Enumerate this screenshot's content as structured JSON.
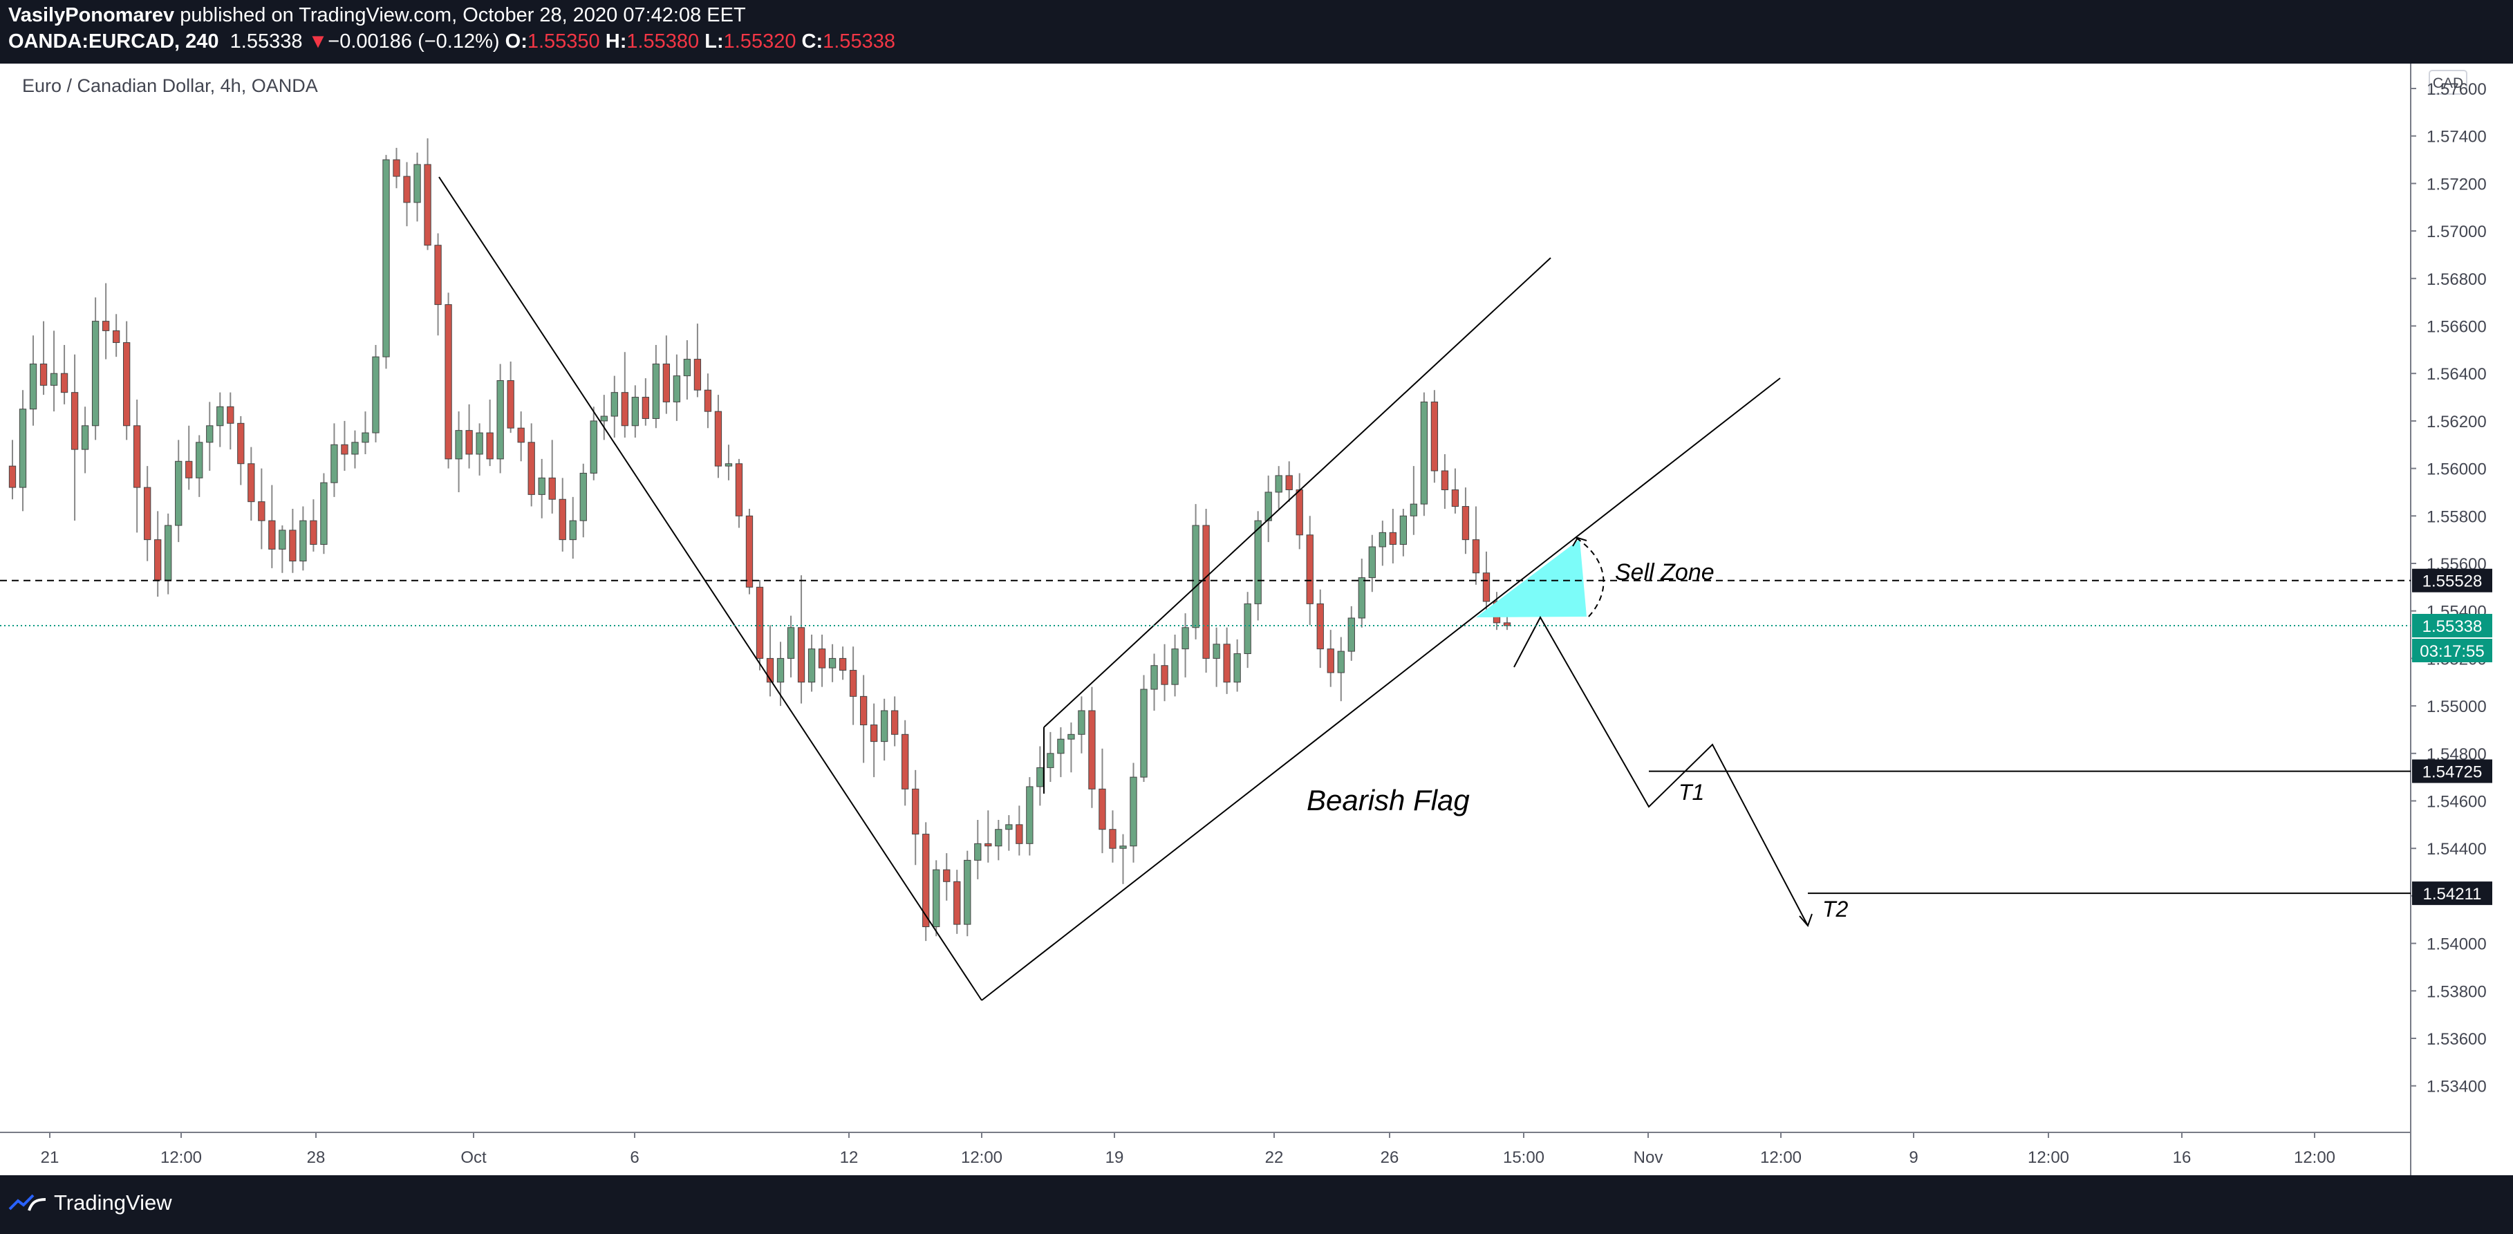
{
  "header": {
    "author": "VasilyPonomarev",
    "published_text": "published on TradingView.com, October 28, 2020 07:42:08 EET",
    "symbol": "OANDA:EURCAD, 240",
    "last": "1.55338",
    "change_arrow": "▼",
    "change": "−0.00186 (−0.12%)",
    "o_label": "O:",
    "o_value": "1.55350",
    "h_label": "H:",
    "h_value": "1.55380",
    "l_label": "L:",
    "l_value": "1.55320",
    "c_label": "C:",
    "c_value": "1.55338"
  },
  "chart": {
    "title": "Euro / Canadian Dollar, 4h, OANDA",
    "currency": "CAD",
    "annotations": {
      "sell_zone": "Sell Zone",
      "bearish_flag": "Bearish Flag",
      "t1": "T1",
      "t2": "T2"
    },
    "price_labels": {
      "dashed_level": "1.55528",
      "current": "1.55338",
      "countdown": "03:17:55",
      "t1_level": "1.54725",
      "t2_level": "1.54211"
    },
    "colors": {
      "up": "#6ba583",
      "down": "#d0544a",
      "current_price": "#089981",
      "sell_zone": "#7cfcf9"
    }
  },
  "chart_data": {
    "type": "candlestick",
    "symbol": "EURCAD",
    "timeframe": "4h",
    "ylim": [
      1.532,
      1.576
    ],
    "y_ticks": [
      "1.57600",
      "1.57400",
      "1.57200",
      "1.57000",
      "1.56800",
      "1.56600",
      "1.56400",
      "1.56200",
      "1.56000",
      "1.55800",
      "1.55600",
      "1.55400",
      "1.55200",
      "1.55000",
      "1.54800",
      "1.54600",
      "1.54400",
      "1.54200",
      "1.54000",
      "1.53800",
      "1.53600",
      "1.53400"
    ],
    "x_ticks": [
      "21",
      "12:00",
      "28",
      "Oct",
      "6",
      "12",
      "12:00",
      "19",
      "22",
      "26",
      "15:00",
      "Nov",
      "12:00",
      "9",
      "12:00",
      "16",
      "12:00"
    ],
    "ohlc": [
      [
        1.5601,
        1.5612,
        1.5587,
        1.5592
      ],
      [
        1.5592,
        1.5633,
        1.5582,
        1.5625
      ],
      [
        1.5625,
        1.5656,
        1.5618,
        1.5644
      ],
      [
        1.5644,
        1.5662,
        1.5631,
        1.5635
      ],
      [
        1.5635,
        1.5658,
        1.5624,
        1.564
      ],
      [
        1.564,
        1.5652,
        1.5627,
        1.5632
      ],
      [
        1.5632,
        1.5648,
        1.5578,
        1.5608
      ],
      [
        1.5608,
        1.5626,
        1.5598,
        1.5618
      ],
      [
        1.5618,
        1.5672,
        1.5612,
        1.5662
      ],
      [
        1.5662,
        1.5678,
        1.5646,
        1.5658
      ],
      [
        1.5658,
        1.5665,
        1.5647,
        1.5653
      ],
      [
        1.5653,
        1.5662,
        1.5612,
        1.5618
      ],
      [
        1.5618,
        1.5629,
        1.5573,
        1.5592
      ],
      [
        1.5592,
        1.5601,
        1.5561,
        1.557
      ],
      [
        1.557,
        1.5582,
        1.5546,
        1.5553
      ],
      [
        1.5553,
        1.5581,
        1.5547,
        1.5576
      ],
      [
        1.5576,
        1.5612,
        1.5569,
        1.5603
      ],
      [
        1.5603,
        1.5618,
        1.5591,
        1.5596
      ],
      [
        1.5596,
        1.5614,
        1.5588,
        1.5611
      ],
      [
        1.5611,
        1.5628,
        1.5599,
        1.5618
      ],
      [
        1.5618,
        1.5632,
        1.5609,
        1.5626
      ],
      [
        1.5626,
        1.5632,
        1.5608,
        1.5619
      ],
      [
        1.5619,
        1.5622,
        1.5593,
        1.5602
      ],
      [
        1.5602,
        1.5609,
        1.5578,
        1.5586
      ],
      [
        1.5586,
        1.56,
        1.5566,
        1.5578
      ],
      [
        1.5578,
        1.5593,
        1.5558,
        1.5566
      ],
      [
        1.5566,
        1.5576,
        1.5556,
        1.5574
      ],
      [
        1.5574,
        1.5583,
        1.5556,
        1.5561
      ],
      [
        1.5561,
        1.5584,
        1.5557,
        1.5578
      ],
      [
        1.5578,
        1.5587,
        1.5565,
        1.5568
      ],
      [
        1.5568,
        1.5598,
        1.5564,
        1.5594
      ],
      [
        1.5594,
        1.5619,
        1.5588,
        1.561
      ],
      [
        1.561,
        1.562,
        1.5599,
        1.5606
      ],
      [
        1.5606,
        1.5616,
        1.56,
        1.5611
      ],
      [
        1.5611,
        1.5624,
        1.5606,
        1.5615
      ],
      [
        1.5615,
        1.5652,
        1.5611,
        1.5647
      ],
      [
        1.5647,
        1.5732,
        1.5642,
        1.573
      ],
      [
        1.573,
        1.5735,
        1.5718,
        1.5723
      ],
      [
        1.5723,
        1.5729,
        1.5702,
        1.5712
      ],
      [
        1.5712,
        1.5733,
        1.5704,
        1.5728
      ],
      [
        1.5728,
        1.5739,
        1.5692,
        1.5694
      ],
      [
        1.5694,
        1.5699,
        1.5656,
        1.5669
      ],
      [
        1.5669,
        1.5674,
        1.56,
        1.5604
      ],
      [
        1.5604,
        1.5624,
        1.559,
        1.5616
      ],
      [
        1.5616,
        1.5627,
        1.56,
        1.5606
      ],
      [
        1.5606,
        1.5619,
        1.5597,
        1.5615
      ],
      [
        1.5615,
        1.5629,
        1.5601,
        1.5604
      ],
      [
        1.5604,
        1.5644,
        1.5598,
        1.5637
      ],
      [
        1.5637,
        1.5645,
        1.5615,
        1.5617
      ],
      [
        1.5617,
        1.5624,
        1.5603,
        1.5611
      ],
      [
        1.5611,
        1.5619,
        1.5584,
        1.5589
      ],
      [
        1.5589,
        1.5604,
        1.5579,
        1.5596
      ],
      [
        1.5596,
        1.5612,
        1.5581,
        1.5587
      ],
      [
        1.5587,
        1.5596,
        1.5565,
        1.557
      ],
      [
        1.557,
        1.5588,
        1.5562,
        1.5578
      ],
      [
        1.5578,
        1.5602,
        1.5571,
        1.5598
      ],
      [
        1.5598,
        1.5626,
        1.5595,
        1.562
      ],
      [
        1.562,
        1.5631,
        1.5612,
        1.5622
      ],
      [
        1.5622,
        1.5639,
        1.5613,
        1.5632
      ],
      [
        1.5632,
        1.5649,
        1.5613,
        1.5618
      ],
      [
        1.5618,
        1.5635,
        1.5613,
        1.563
      ],
      [
        1.563,
        1.5638,
        1.5618,
        1.5621
      ],
      [
        1.5621,
        1.5652,
        1.5617,
        1.5644
      ],
      [
        1.5644,
        1.5656,
        1.5623,
        1.5628
      ],
      [
        1.5628,
        1.5648,
        1.562,
        1.5639
      ],
      [
        1.5639,
        1.5654,
        1.5629,
        1.5646
      ],
      [
        1.5646,
        1.5661,
        1.563,
        1.5633
      ],
      [
        1.5633,
        1.564,
        1.5617,
        1.5624
      ],
      [
        1.5624,
        1.5631,
        1.5596,
        1.5601
      ],
      [
        1.5601,
        1.561,
        1.5595,
        1.5602
      ],
      [
        1.5602,
        1.5604,
        1.5575,
        1.558
      ],
      [
        1.558,
        1.5583,
        1.5547,
        1.555
      ],
      [
        1.555,
        1.5553,
        1.5515,
        1.552
      ],
      [
        1.552,
        1.5534,
        1.5504,
        1.551
      ],
      [
        1.551,
        1.5527,
        1.55,
        1.552
      ],
      [
        1.552,
        1.5538,
        1.5512,
        1.5533
      ],
      [
        1.5533,
        1.5555,
        1.5501,
        1.551
      ],
      [
        1.551,
        1.553,
        1.5506,
        1.5524
      ],
      [
        1.5524,
        1.553,
        1.5508,
        1.5516
      ],
      [
        1.5516,
        1.5526,
        1.551,
        1.552
      ],
      [
        1.552,
        1.5525,
        1.5511,
        1.5515
      ],
      [
        1.5515,
        1.5525,
        1.5492,
        1.5504
      ],
      [
        1.5504,
        1.5513,
        1.5476,
        1.5492
      ],
      [
        1.5492,
        1.5501,
        1.547,
        1.5485
      ],
      [
        1.5485,
        1.5503,
        1.5477,
        1.5498
      ],
      [
        1.5498,
        1.5504,
        1.5483,
        1.5488
      ],
      [
        1.5488,
        1.5494,
        1.5458,
        1.5465
      ],
      [
        1.5465,
        1.5473,
        1.5433,
        1.5446
      ],
      [
        1.5446,
        1.5451,
        1.5401,
        1.5407
      ],
      [
        1.5407,
        1.5435,
        1.5403,
        1.5431
      ],
      [
        1.5431,
        1.5438,
        1.5418,
        1.5426
      ],
      [
        1.5426,
        1.5431,
        1.5404,
        1.5408
      ],
      [
        1.5408,
        1.5439,
        1.5403,
        1.5435
      ],
      [
        1.5435,
        1.5452,
        1.5427,
        1.5442
      ],
      [
        1.5442,
        1.5456,
        1.5434,
        1.5441
      ],
      [
        1.5441,
        1.5452,
        1.5435,
        1.5448
      ],
      [
        1.5448,
        1.5454,
        1.5439,
        1.545
      ],
      [
        1.545,
        1.5458,
        1.5437,
        1.5442
      ],
      [
        1.5442,
        1.547,
        1.5437,
        1.5466
      ],
      [
        1.5466,
        1.5483,
        1.5458,
        1.5474
      ],
      [
        1.5474,
        1.5489,
        1.5468,
        1.548
      ],
      [
        1.548,
        1.5491,
        1.547,
        1.5486
      ],
      [
        1.5486,
        1.5493,
        1.5472,
        1.5488
      ],
      [
        1.5488,
        1.5504,
        1.548,
        1.5498
      ],
      [
        1.5498,
        1.5508,
        1.5457,
        1.5465
      ],
      [
        1.5465,
        1.5482,
        1.5438,
        1.5448
      ],
      [
        1.5448,
        1.5456,
        1.5434,
        1.544
      ],
      [
        1.544,
        1.5446,
        1.5425,
        1.5441
      ],
      [
        1.5441,
        1.5476,
        1.5434,
        1.547
      ],
      [
        1.547,
        1.5513,
        1.5468,
        1.5507
      ],
      [
        1.5507,
        1.5522,
        1.5498,
        1.5517
      ],
      [
        1.5517,
        1.5526,
        1.5502,
        1.5509
      ],
      [
        1.5509,
        1.553,
        1.5504,
        1.5524
      ],
      [
        1.5524,
        1.5539,
        1.5512,
        1.5533
      ],
      [
        1.5533,
        1.5585,
        1.5528,
        1.5576
      ],
      [
        1.5576,
        1.5583,
        1.5514,
        1.552
      ],
      [
        1.552,
        1.5533,
        1.5508,
        1.5526
      ],
      [
        1.5526,
        1.5533,
        1.5505,
        1.551
      ],
      [
        1.551,
        1.5528,
        1.5506,
        1.5522
      ],
      [
        1.5522,
        1.5548,
        1.5516,
        1.5543
      ],
      [
        1.5543,
        1.5582,
        1.5536,
        1.5578
      ],
      [
        1.5578,
        1.5597,
        1.5569,
        1.559
      ],
      [
        1.559,
        1.5601,
        1.5583,
        1.5597
      ],
      [
        1.5597,
        1.5603,
        1.5586,
        1.5591
      ],
      [
        1.5591,
        1.5598,
        1.5566,
        1.5572
      ],
      [
        1.5572,
        1.558,
        1.5534,
        1.5543
      ],
      [
        1.5543,
        1.5549,
        1.5516,
        1.5524
      ],
      [
        1.5524,
        1.5532,
        1.5508,
        1.5514
      ],
      [
        1.5514,
        1.5529,
        1.5502,
        1.5523
      ],
      [
        1.5523,
        1.5542,
        1.5519,
        1.5537
      ],
      [
        1.5537,
        1.5562,
        1.5533,
        1.5554
      ],
      [
        1.5554,
        1.5572,
        1.5548,
        1.5567
      ],
      [
        1.5567,
        1.5578,
        1.5559,
        1.5573
      ],
      [
        1.5573,
        1.5583,
        1.556,
        1.5568
      ],
      [
        1.5568,
        1.5583,
        1.5563,
        1.558
      ],
      [
        1.558,
        1.5601,
        1.5572,
        1.5585
      ],
      [
        1.5585,
        1.5632,
        1.558,
        1.5628
      ],
      [
        1.5628,
        1.5633,
        1.5594,
        1.5599
      ],
      [
        1.5599,
        1.5606,
        1.5583,
        1.5591
      ],
      [
        1.5591,
        1.56,
        1.5581,
        1.5584
      ],
      [
        1.5584,
        1.5592,
        1.5564,
        1.557
      ],
      [
        1.557,
        1.5584,
        1.5551,
        1.5556
      ],
      [
        1.5556,
        1.5565,
        1.5538,
        1.5544
      ],
      [
        1.5544,
        1.5548,
        1.5532,
        1.5535
      ],
      [
        1.5535,
        1.5538,
        1.5532,
        1.55338
      ]
    ],
    "levels": [
      {
        "label": "1.55528",
        "value": 1.55528,
        "style": "dashed"
      },
      {
        "label": "1.55338",
        "value": 1.55338,
        "style": "dotted"
      },
      {
        "label": "1.54725",
        "value": 1.54725,
        "style": "solid"
      },
      {
        "label": "1.54211",
        "value": 1.54211,
        "style": "solid"
      }
    ]
  }
}
